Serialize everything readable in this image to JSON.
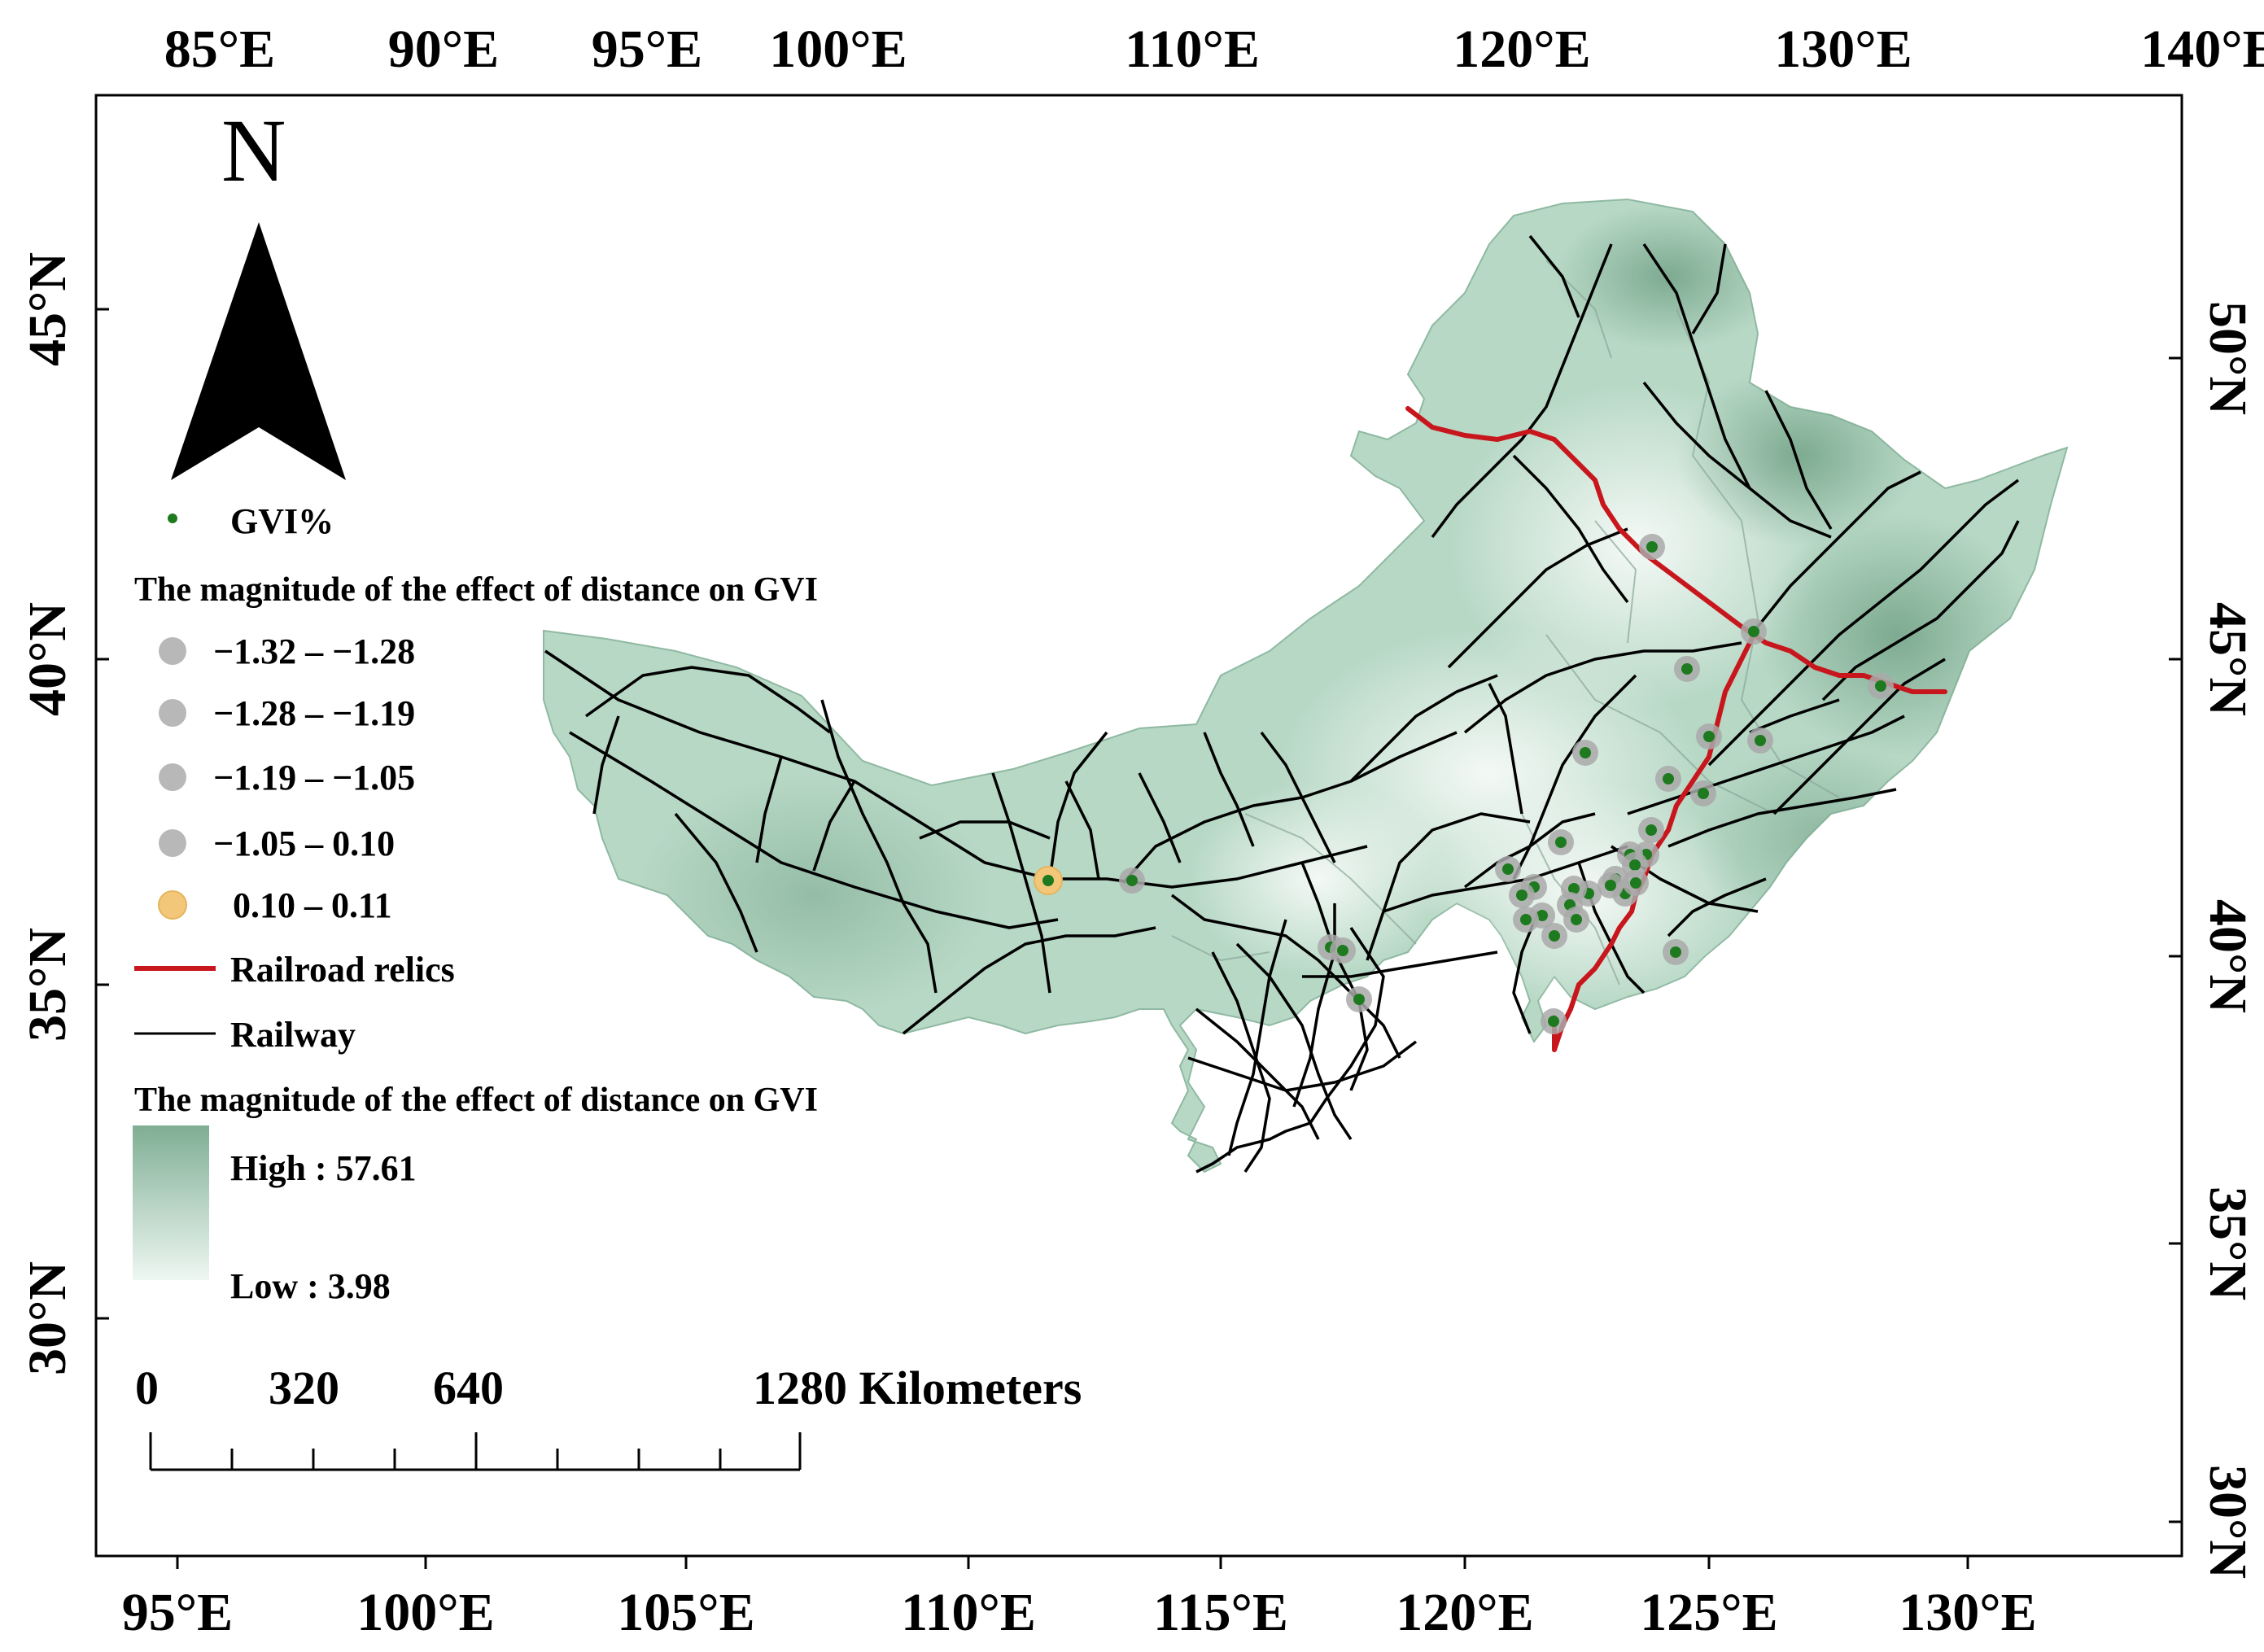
{
  "map": {
    "axis_labels": {
      "top": [
        "85°E",
        "90°E",
        "95°E",
        "100°E",
        "110°E",
        "120°E",
        "130°E",
        "140°E"
      ],
      "bottom": [
        "95°E",
        "100°E",
        "105°E",
        "110°E",
        "115°E",
        "120°E",
        "125°E",
        "130°E"
      ],
      "left": [
        "45°N",
        "40°N",
        "35°N",
        "30°N"
      ],
      "right": [
        "50°N",
        "45°N",
        "40°N",
        "35°N",
        "30°N"
      ]
    },
    "north_arrow": {
      "label": "N"
    },
    "legend": {
      "point_label": "GVI%",
      "effect_title": "The magnitude of the effect of distance on GVI",
      "classes": [
        {
          "label": "−1.32 – −1.28",
          "color": "#b8b8b8"
        },
        {
          "label": "−1.28 – −1.19",
          "color": "#b8b8b8"
        },
        {
          "label": "−1.19 – −1.05",
          "color": "#b8b8b8"
        },
        {
          "label": "−1.05 – 0.10",
          "color": "#b8b8b8"
        },
        {
          "label": " 0.10 – 0.11",
          "color": "#f3c77a"
        }
      ],
      "railroad_relics": {
        "label": "Railroad relics",
        "color": "#c8161d"
      },
      "railway": {
        "label": "Railway",
        "color": "#000000"
      },
      "surface_title": "The magnitude of the effect of distance on GVI",
      "high": "High : 57.61",
      "low": "Low : 3.98",
      "ramp_colors": [
        "#7fae94",
        "#eef7f2"
      ]
    },
    "scale_bar": {
      "labels": [
        "0",
        "320",
        "640",
        "1280 Kilometers"
      ]
    },
    "colors": {
      "region_fill": "#b7d8c5",
      "point": "#1e7a1e",
      "halo": "#a9a9a9"
    }
  }
}
